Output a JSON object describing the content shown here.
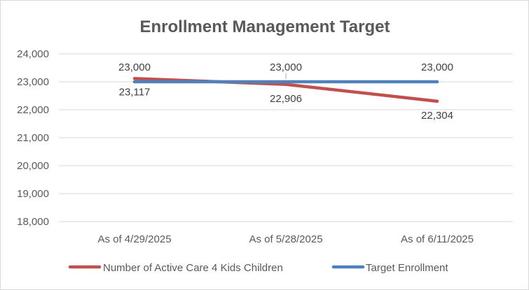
{
  "chart_data": {
    "type": "line",
    "title": "Enrollment Management Target",
    "categories": [
      "As of 4/29/2025",
      "As of 5/28/2025",
      "As of 6/11/2025"
    ],
    "series": [
      {
        "name": "Number of Active Care 4 Kids Children",
        "values": [
          23117,
          22906,
          22304
        ],
        "labels": [
          "23,117",
          "22,906",
          "22,304"
        ],
        "color": "#c0504d"
      },
      {
        "name": "Target Enrollment",
        "values": [
          23000,
          23000,
          23000
        ],
        "labels": [
          "23,000",
          "23,000",
          "23,000"
        ],
        "color": "#4f81bd"
      }
    ],
    "ylim": [
      18000,
      24000
    ],
    "yticks": [
      18000,
      19000,
      20000,
      21000,
      22000,
      23000,
      24000
    ],
    "ytick_labels": [
      "18,000",
      "19,000",
      "20,000",
      "21,000",
      "22,000",
      "23,000",
      "24,000"
    ],
    "grid": true,
    "legend": "bottom"
  }
}
